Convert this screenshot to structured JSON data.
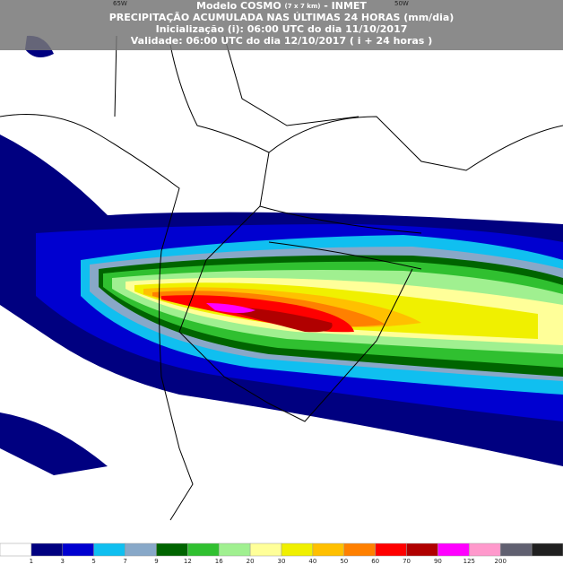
{
  "header": {
    "model": "Modelo COSMO",
    "resolution": "(7 x 7 km)",
    "source": "- INMET",
    "title": "PRECIPITAÇÃO ACUMULADA NAS ÚLTIMAS 24 HORAS (mm/dia)",
    "init": "Inicialização (i): 06:00 UTC do dia 11/10/2017",
    "valid": "Validade: 06:00 UTC do dia 12/10/2017 ( i + 24 horas )",
    "lon_labels": [
      "65W",
      "50W"
    ]
  },
  "legend": {
    "levels": [
      1,
      3,
      5,
      7,
      9,
      12,
      16,
      20,
      30,
      40,
      50,
      60,
      70,
      90,
      125,
      200
    ],
    "colors": [
      "#ffffff",
      "#000080",
      "#0000d0",
      "#10bff0",
      "#88a8c8",
      "#006400",
      "#30c030",
      "#a0f090",
      "#ffff99",
      "#f0f000",
      "#ffc000",
      "#ff8000",
      "#ff0000",
      "#b00000",
      "#ff00ff",
      "#ff99cc",
      "#606070",
      "#202020"
    ]
  }
}
